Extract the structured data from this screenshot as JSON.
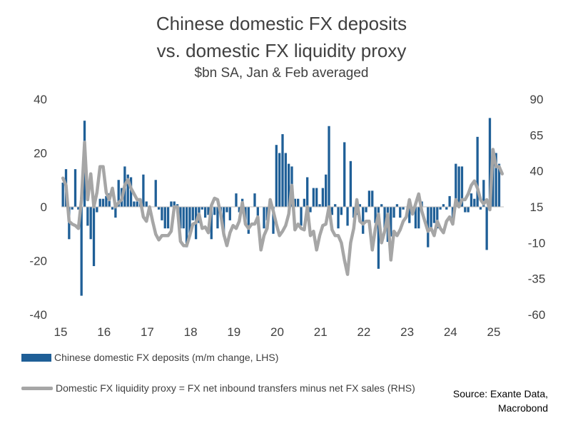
{
  "chart_data": {
    "type": "bar+line",
    "title": "Chinese domestic FX deposits",
    "title_line2": "vs. domestic FX liquidity proxy",
    "subtitle": "$bn SA, Jan & Feb averaged",
    "x_tick_labels": [
      "15",
      "16",
      "17",
      "18",
      "19",
      "20",
      "21",
      "22",
      "23",
      "24",
      "25"
    ],
    "left_axis": {
      "ylim": [
        -40,
        40
      ],
      "ticks": [
        "40",
        "20",
        "0",
        "-20",
        "-40"
      ]
    },
    "right_axis": {
      "ylim": [
        -60,
        90
      ],
      "ticks": [
        "90",
        "65",
        "40",
        "15",
        "-10",
        "-35",
        "-60"
      ]
    },
    "series": [
      {
        "name": "Chinese domestic FX deposits (m/m change, LHS)",
        "type": "bar",
        "axis": "left",
        "color": "#1f5f97",
        "values": [
          9,
          14,
          -12,
          -1,
          14,
          -1,
          -33,
          32,
          -7,
          -12,
          -22,
          -2,
          3,
          3,
          4,
          5,
          -1,
          -4,
          10,
          7,
          15,
          12,
          11,
          2,
          2,
          2,
          12,
          2,
          -2,
          0,
          10,
          -1,
          -5,
          -8,
          -8,
          2,
          2,
          1,
          -8,
          -8,
          -15,
          -10,
          -5,
          -12,
          -6,
          -1,
          -4,
          -3,
          -12,
          -3,
          -8,
          -3,
          -11,
          -2,
          -5,
          0,
          5,
          -2,
          3,
          -6,
          -10,
          0,
          5,
          -5,
          0,
          -8,
          -5,
          0,
          -10,
          23,
          20,
          27,
          20,
          16,
          15,
          3,
          3,
          -7,
          3,
          11,
          -2,
          7,
          7,
          1,
          7,
          12,
          30,
          -3,
          1,
          -8,
          -3,
          24,
          -7,
          17,
          -4,
          -3,
          1,
          -10,
          -2,
          6,
          6,
          -6,
          -23,
          1,
          -9,
          -13,
          -11,
          -4,
          1,
          -4,
          -1,
          0,
          -6,
          -2,
          -8,
          -8,
          2,
          0,
          -15,
          -8,
          -6,
          -8,
          -1,
          1,
          -1,
          4,
          -5,
          16,
          15,
          15,
          -2,
          -2,
          5,
          3,
          26,
          -1,
          10,
          -16,
          33,
          20,
          20,
          16
        ]
      },
      {
        "name": "Domestic FX liquidity proxy = FX net inbound transfers minus net FX sales (RHS)",
        "type": "line",
        "axis": "right",
        "color": "#a6a6a6",
        "values": [
          35,
          30,
          5,
          3,
          2,
          0,
          20,
          60,
          20,
          38,
          15,
          25,
          43,
          43,
          25,
          20,
          28,
          15,
          18,
          20,
          30,
          34,
          28,
          24,
          20,
          20,
          8,
          5,
          15,
          5,
          -4,
          -8,
          -5,
          -5,
          -5,
          -2,
          15,
          15,
          -9,
          -12,
          -12,
          -5,
          3,
          4,
          10,
          0,
          1,
          -3,
          16,
          21,
          20,
          10,
          -4,
          -12,
          -3,
          2,
          0,
          5,
          18,
          3,
          0,
          3,
          3,
          8,
          -15,
          -5,
          0,
          20,
          12,
          3,
          -5,
          -2,
          2,
          10,
          30,
          -1,
          3,
          0,
          -1,
          15,
          -5,
          -2,
          -15,
          -5,
          2,
          3,
          15,
          -1,
          -5,
          -5,
          -10,
          -22,
          -32,
          -10,
          0,
          20,
          5,
          3,
          5,
          5,
          -15,
          0,
          10,
          -10,
          -2,
          10,
          -22,
          -2,
          -5,
          -1,
          5,
          8,
          20,
          10,
          17,
          24,
          12,
          5,
          -2,
          0,
          -5,
          5,
          0,
          -3,
          5,
          8,
          3,
          20,
          15,
          20,
          20,
          24,
          30,
          33,
          28,
          20,
          17,
          20,
          13,
          55,
          43,
          43,
          38
        ]
      }
    ]
  },
  "source": {
    "line1": "Source: Exante Data,",
    "line2": "Macrobond"
  }
}
